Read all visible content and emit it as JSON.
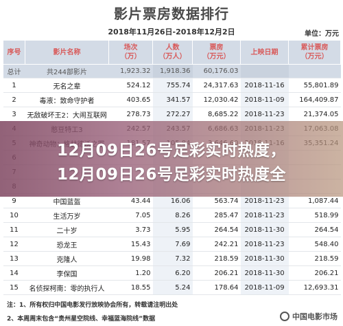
{
  "header": {
    "title": "影片票房数据排行",
    "date_range": "2018年11月26日-2018年12月2日",
    "unit": "单位：万元"
  },
  "table": {
    "columns": [
      "序号",
      "影片名称",
      "场次\n（万）",
      "人数\n（万人）",
      "票房\n（万元）",
      "上映日期",
      "累计票房\n（万元）"
    ],
    "total": {
      "seq": "总计",
      "name": "共244部影片",
      "shows": "1,923.32",
      "viewers": "1,918.36",
      "box": "60,176.03",
      "date": "",
      "cumulative": ""
    },
    "rows": [
      {
        "seq": "1",
        "name": "无名之辈",
        "shows": "524.12",
        "viewers": "755.74",
        "box": "24,317.63",
        "date": "2018-11-16",
        "cumulative": "55,801.89"
      },
      {
        "seq": "2",
        "name": "毒液：致命守护者",
        "shows": "403.65",
        "viewers": "341.57",
        "box": "12,030.42",
        "date": "2018-11-09",
        "cumulative": "164,409.87"
      },
      {
        "seq": "3",
        "name": "无敌破坏王2：大闹互联网",
        "shows": "278.73",
        "viewers": "272.27",
        "box": "8,685.22",
        "date": "2018-11-23",
        "cumulative": "21,374.05"
      },
      {
        "seq": "4",
        "name": "憨豆特工3",
        "shows": "242.57",
        "viewers": "243.57",
        "box": "6,686.63",
        "date": "2018-11-23",
        "cumulative": "17,063.08"
      },
      {
        "seq": "5",
        "name": "神奇动物：格林德沃之罪",
        "shows": "181.57",
        "viewers": "105.84",
        "box": "3,646.60",
        "date": "2018-11-16",
        "cumulative": "35,351.24"
      },
      {
        "seq": "6",
        "name": "",
        "shows": "",
        "viewers": "",
        "box": "",
        "date": "",
        "cumulative": ""
      },
      {
        "seq": "7",
        "name": "",
        "shows": "",
        "viewers": "",
        "box": "",
        "date": "",
        "cumulative": ""
      },
      {
        "seq": "8",
        "name": "",
        "shows": "",
        "viewers": "",
        "box": "",
        "date": "",
        "cumulative": ""
      },
      {
        "seq": "9",
        "name": "中国蓝盔",
        "shows": "43.44",
        "viewers": "16.06",
        "box": "563.74",
        "date": "2018-11-23",
        "cumulative": "1,087.44"
      },
      {
        "seq": "10",
        "name": "生活万岁",
        "shows": "7.05",
        "viewers": "8.26",
        "box": "285.47",
        "date": "2018-11-23",
        "cumulative": "518.99"
      },
      {
        "seq": "11",
        "name": "二十岁",
        "shows": "3.73",
        "viewers": "5.95",
        "box": "264.54",
        "date": "2018-11-30",
        "cumulative": "264.54"
      },
      {
        "seq": "12",
        "name": "恐龙王",
        "shows": "15.43",
        "viewers": "7.69",
        "box": "242.21",
        "date": "2018-11-23",
        "cumulative": "548.40"
      },
      {
        "seq": "13",
        "name": "克隆人",
        "shows": "19.98",
        "viewers": "7.32",
        "box": "218.59",
        "date": "2018-11-30",
        "cumulative": "218.59"
      },
      {
        "seq": "14",
        "name": "李保国",
        "shows": "1.20",
        "viewers": "6.20",
        "box": "206.21",
        "date": "2018-11-30",
        "cumulative": "206.21"
      },
      {
        "seq": "15",
        "name": "名侦探柯南：零的执行人",
        "shows": "18.55",
        "viewers": "5.24",
        "box": "178.64",
        "date": "2018-11-09",
        "cumulative": "12,693.31"
      }
    ]
  },
  "banner": {
    "line1": "12月09日26号足彩实时热度，",
    "line2": "12月09日26号足彩实时热度全"
  },
  "notes": {
    "note1": "注：1、所有权归中国电影发行放映协会所有，转载请注明出处",
    "note2": "2、本周周末包含“贵州星空院线、幸福蓝海院线”数据"
  },
  "watermark": {
    "text": "中国电影市场",
    "icon": "logo-icon"
  }
}
